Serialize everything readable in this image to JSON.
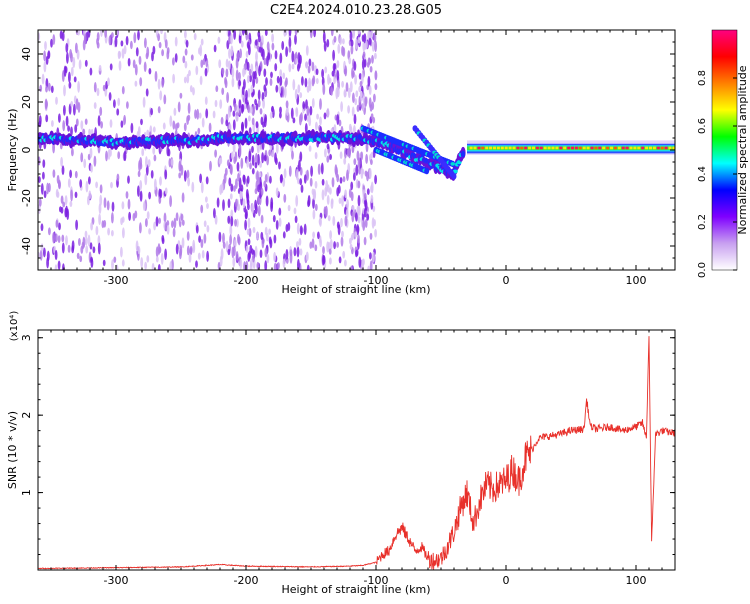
{
  "title": "C2E4.2024.010.23.28.G05",
  "chart_data": [
    {
      "type": "heatmap",
      "xlabel": "Height of straight line (km)",
      "ylabel": "Frequency (Hz)",
      "xlim": [
        -360,
        130
      ],
      "ylim": [
        -50,
        50
      ],
      "xticks": [
        -300,
        -200,
        -100,
        0,
        100
      ],
      "yticks": [
        -40,
        -20,
        0,
        20,
        40
      ],
      "colorbar": {
        "label": "Normalized spectral amplitude",
        "range": [
          0,
          1
        ],
        "ticks": [
          "0.0",
          "0.2",
          "0.4",
          "0.6",
          "0.8"
        ],
        "colors": [
          "#ffffff",
          "#c8a0f0",
          "#7f00ff",
          "#0000ff",
          "#00ffff",
          "#00ff00",
          "#ffff00",
          "#ff8000",
          "#ff0000",
          "#ff0080"
        ]
      },
      "ridge": [
        {
          "x": -360,
          "y": 5
        },
        {
          "x": -330,
          "y": 4
        },
        {
          "x": -300,
          "y": 3
        },
        {
          "x": -270,
          "y": 4
        },
        {
          "x": -240,
          "y": 4
        },
        {
          "x": -220,
          "y": 5
        },
        {
          "x": -200,
          "y": 5
        },
        {
          "x": -170,
          "y": 5
        },
        {
          "x": -140,
          "y": 5
        },
        {
          "x": -120,
          "y": 5
        },
        {
          "x": -100,
          "y": 4
        },
        {
          "x": -90,
          "y": 2
        },
        {
          "x": -80,
          "y": 0
        },
        {
          "x": -70,
          "y": -3
        },
        {
          "x": -60,
          "y": -5
        },
        {
          "x": -50,
          "y": -8
        },
        {
          "x": -40,
          "y": -10
        },
        {
          "x": -35,
          "y": -3
        },
        {
          "x": -30,
          "y": 0
        },
        {
          "x": -20,
          "y": 1
        },
        {
          "x": 0,
          "y": 1
        },
        {
          "x": 40,
          "y": 1
        },
        {
          "x": 80,
          "y": 1
        },
        {
          "x": 110,
          "y": 1
        },
        {
          "x": 130,
          "y": 1
        }
      ]
    },
    {
      "type": "line",
      "xlabel": "Height of straight line (km)",
      "ylabel": "SNR (10 * v/v)",
      "y_multiplier": "(x10⁴)",
      "xlim": [
        -360,
        130
      ],
      "ylim": [
        0,
        3.1
      ],
      "xticks": [
        -300,
        -200,
        -100,
        0,
        100
      ],
      "yticks": [
        1,
        2,
        3
      ],
      "color": "#e8302a",
      "series": [
        {
          "x": [
            -360,
            -300,
            -250,
            -220,
            -200,
            -150,
            -120,
            -110,
            -100,
            -95,
            -90,
            -85,
            -80,
            -75,
            -70,
            -65,
            -60,
            -55,
            -50,
            -45,
            -40,
            -35,
            -30,
            -25,
            -20,
            -15,
            -10,
            -5,
            0,
            5,
            10,
            15,
            20,
            25,
            30,
            40,
            50,
            60,
            62,
            65,
            70,
            80,
            90,
            100,
            105,
            108,
            110,
            112,
            115,
            120,
            125,
            130
          ],
          "y": [
            0.02,
            0.03,
            0.04,
            0.07,
            0.05,
            0.04,
            0.05,
            0.06,
            0.1,
            0.2,
            0.25,
            0.45,
            0.55,
            0.4,
            0.25,
            0.3,
            0.15,
            0.12,
            0.15,
            0.3,
            0.5,
            0.8,
            1.0,
            0.6,
            0.9,
            1.1,
            1.05,
            1.1,
            1.15,
            1.3,
            1.15,
            1.45,
            1.55,
            1.7,
            1.72,
            1.75,
            1.8,
            1.82,
            2.2,
            1.85,
            1.82,
            1.85,
            1.8,
            1.85,
            1.9,
            1.7,
            3.05,
            0.35,
            1.75,
            1.8,
            1.78,
            1.77
          ]
        }
      ]
    }
  ]
}
